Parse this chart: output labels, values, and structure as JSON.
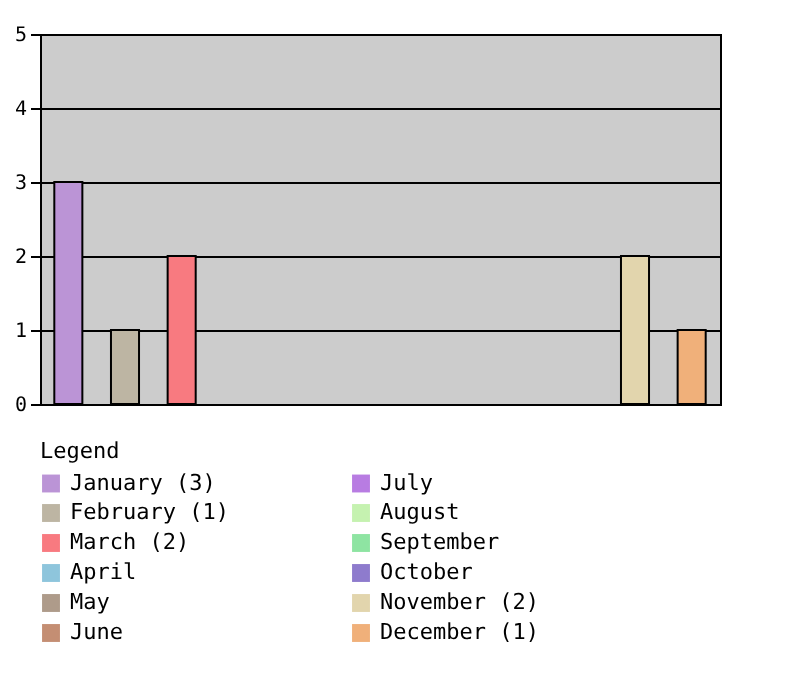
{
  "chart_data": {
    "type": "bar",
    "legend_title": "Legend",
    "categories": [
      null,
      null,
      null,
      null,
      null,
      null,
      null,
      null,
      null,
      null,
      null,
      null
    ],
    "series": [
      {
        "name": "January (3)",
        "color": "#bb94d6",
        "values": [
          3,
          null,
          null,
          null,
          null,
          null,
          null,
          null,
          null,
          null,
          null,
          null
        ]
      },
      {
        "name": "February (1)",
        "color": "#bdb5a3",
        "values": [
          null,
          1,
          null,
          null,
          null,
          null,
          null,
          null,
          null,
          null,
          null,
          null
        ]
      },
      {
        "name": "March (2)",
        "color": "#f87a80",
        "values": [
          null,
          null,
          2,
          null,
          null,
          null,
          null,
          null,
          null,
          null,
          null,
          null
        ]
      },
      {
        "name": "April",
        "color": "#8ec5dc",
        "values": [
          null,
          null,
          null,
          0,
          null,
          null,
          null,
          null,
          null,
          null,
          null,
          null
        ]
      },
      {
        "name": "May",
        "color": "#ae9b8a",
        "values": [
          null,
          null,
          null,
          null,
          0,
          null,
          null,
          null,
          null,
          null,
          null,
          null
        ]
      },
      {
        "name": "June",
        "color": "#c48e73",
        "values": [
          null,
          null,
          null,
          null,
          null,
          0,
          null,
          null,
          null,
          null,
          null,
          null
        ]
      },
      {
        "name": "July",
        "color": "#b87ce2",
        "values": [
          null,
          null,
          null,
          null,
          null,
          null,
          0,
          null,
          null,
          null,
          null,
          null
        ]
      },
      {
        "name": "August",
        "color": "#c5f2b0",
        "values": [
          null,
          null,
          null,
          null,
          null,
          null,
          null,
          0,
          null,
          null,
          null,
          null
        ]
      },
      {
        "name": "September",
        "color": "#8ee4a2",
        "values": [
          null,
          null,
          null,
          null,
          null,
          null,
          null,
          null,
          0,
          null,
          null,
          null
        ]
      },
      {
        "name": "October",
        "color": "#8e7bcd",
        "values": [
          null,
          null,
          null,
          null,
          null,
          null,
          null,
          null,
          null,
          0,
          null,
          null
        ]
      },
      {
        "name": "November (2)",
        "color": "#e2d5ad",
        "values": [
          null,
          null,
          null,
          null,
          null,
          null,
          null,
          null,
          null,
          null,
          2,
          null
        ]
      },
      {
        "name": "December (1)",
        "color": "#f0b07a",
        "values": [
          null,
          null,
          null,
          null,
          null,
          null,
          null,
          null,
          null,
          null,
          null,
          1
        ]
      }
    ],
    "ylim": [
      0,
      5
    ],
    "yticks": [
      0,
      1,
      2,
      3,
      4,
      5
    ],
    "grid": "y",
    "legend": "bottom",
    "tick_labels": "y"
  }
}
